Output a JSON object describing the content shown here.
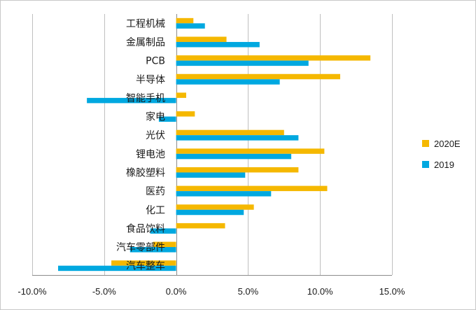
{
  "chart_data": {
    "type": "bar",
    "orientation": "horizontal",
    "categories": [
      "工程机械",
      "金属制品",
      "PCB",
      "半导体",
      "智能手机",
      "家电",
      "光伏",
      "锂电池",
      "橡胶塑料",
      "医药",
      "化工",
      "食品饮料",
      "汽车零部件",
      "汽车整车"
    ],
    "series": [
      {
        "name": "2020E",
        "color": "#F5B800",
        "values": [
          1.2,
          3.5,
          13.5,
          11.4,
          0.7,
          1.3,
          7.5,
          10.3,
          8.5,
          10.5,
          5.4,
          3.4,
          -1.6,
          -4.5
        ]
      },
      {
        "name": "2019",
        "color": "#00A8E0",
        "values": [
          2.0,
          5.8,
          9.2,
          7.2,
          -6.2,
          -1.2,
          8.5,
          8.0,
          4.8,
          6.6,
          4.7,
          -1.8,
          -3.2,
          -8.2
        ]
      }
    ],
    "x_ticks": [
      -10,
      -5,
      0,
      5,
      10,
      15
    ],
    "x_tick_labels": [
      "-10.0%",
      "-5.0%",
      "0.0%",
      "5.0%",
      "10.0%",
      "15.0%"
    ],
    "xlim": [
      -10,
      15
    ],
    "grid": true,
    "legend": {
      "position": "right",
      "entries": [
        "2020E",
        "2019"
      ]
    }
  }
}
